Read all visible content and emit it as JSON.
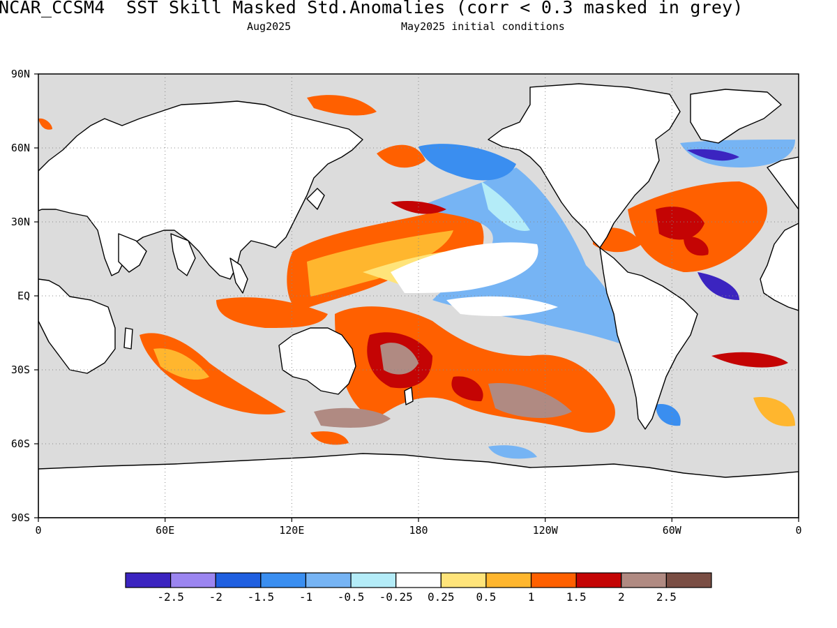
{
  "title": "NCAR_CCSM4  SST Skill Masked Std.Anomalies (corr < 0.3 masked in grey)",
  "target_month": "Aug2025",
  "initial_conditions": "May2025 initial conditions",
  "map": {
    "lat_labels": [
      "90N",
      "60N",
      "30N",
      "EQ",
      "30S",
      "60S",
      "90S"
    ],
    "lon_labels": [
      "0",
      "60E",
      "120E",
      "180",
      "120W",
      "60W",
      "0"
    ],
    "land_color": "#ffffff",
    "mask_color": "#dcdcdc",
    "coast_color": "#000000"
  },
  "colorbar": {
    "colors": [
      "#3b24c0",
      "#9b85f0",
      "#1f5fe0",
      "#3a8ef0",
      "#76b4f4",
      "#b4ecf8",
      "#ffffff",
      "#ffe47a",
      "#ffb62e",
      "#ff6000",
      "#c40404",
      "#b08a82",
      "#7a4e44"
    ],
    "labels": [
      "-2.5",
      "-2",
      "-1.5",
      "-1",
      "-0.5",
      "-0.25",
      "0.25",
      "0.5",
      "1",
      "1.5",
      "2",
      "2.5"
    ]
  }
}
